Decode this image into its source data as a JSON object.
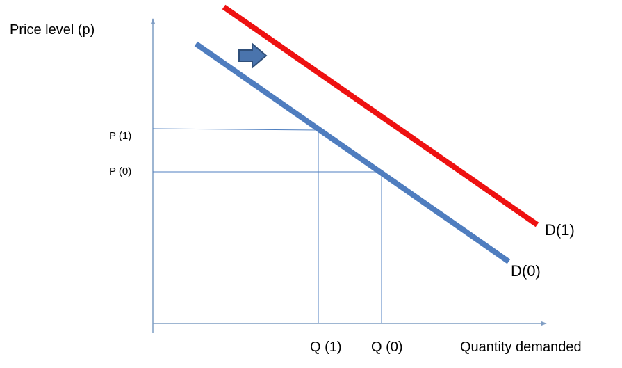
{
  "axes": {
    "y_label": "Price level (p)",
    "x_label": "Quantity demanded"
  },
  "levels": {
    "p1": "P (1)",
    "p0": "P (0)",
    "q1": "Q (1)",
    "q0": "Q (0)"
  },
  "curves": {
    "d1": "D(1)",
    "d0": "D(0)"
  }
}
